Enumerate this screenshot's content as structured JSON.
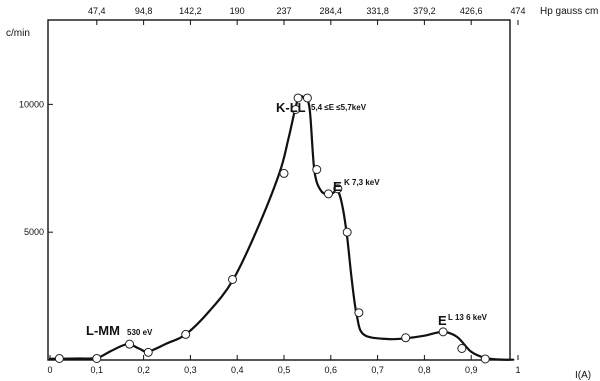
{
  "chart_data": {
    "type": "line",
    "title": "",
    "ylabel": "c/min",
    "xlabel": "I(A)",
    "top_axis_label": "Hp gauss cm",
    "xlim": [
      0,
      1.09
    ],
    "ylim": [
      0,
      13300
    ],
    "x_ticks": [
      {
        "v": 0,
        "label": "0"
      },
      {
        "v": 0.1,
        "label": "0,1"
      },
      {
        "v": 0.2,
        "label": "0,2"
      },
      {
        "v": 0.3,
        "label": "0,3"
      },
      {
        "v": 0.4,
        "label": "0,4"
      },
      {
        "v": 0.5,
        "label": "0,5"
      },
      {
        "v": 0.6,
        "label": "0,6"
      },
      {
        "v": 0.7,
        "label": "0,7"
      },
      {
        "v": 0.8,
        "label": "0,8"
      },
      {
        "v": 0.9,
        "label": "0,9"
      },
      {
        "v": 1.0,
        "label": "1"
      }
    ],
    "top_ticks": [
      {
        "v": 0.1,
        "label": "47,4"
      },
      {
        "v": 0.2,
        "label": "94,8"
      },
      {
        "v": 0.3,
        "label": "142,2"
      },
      {
        "v": 0.4,
        "label": "190"
      },
      {
        "v": 0.5,
        "label": "237"
      },
      {
        "v": 0.6,
        "label": "284,4"
      },
      {
        "v": 0.7,
        "label": "331,8"
      },
      {
        "v": 0.8,
        "label": "379,2"
      },
      {
        "v": 0.9,
        "label": "426,6"
      },
      {
        "v": 1.0,
        "label": "474"
      }
    ],
    "y_ticks": [
      {
        "v": 5000,
        "label": "5000"
      },
      {
        "v": 10000,
        "label": "10000"
      }
    ],
    "curve": {
      "x": [
        0.0,
        0.02,
        0.06,
        0.1,
        0.13,
        0.165,
        0.19,
        0.21,
        0.25,
        0.29,
        0.34,
        0.39,
        0.44,
        0.49,
        0.51,
        0.53,
        0.545,
        0.555,
        0.565,
        0.58,
        0.6,
        0.615,
        0.625,
        0.635,
        0.645,
        0.655,
        0.67,
        0.72,
        0.76,
        0.8,
        0.84,
        0.87,
        0.9,
        0.93,
        0.96,
        0.99
      ],
      "y": [
        50,
        50,
        60,
        80,
        350,
        620,
        450,
        330,
        650,
        1000,
        1900,
        3100,
        5000,
        7300,
        8700,
        10200,
        10200,
        9800,
        7400,
        6600,
        6500,
        6600,
        6000,
        4800,
        3100,
        1800,
        1000,
        820,
        850,
        950,
        1100,
        900,
        320,
        80,
        20,
        10
      ]
    },
    "points": {
      "x": [
        0.02,
        0.1,
        0.17,
        0.21,
        0.29,
        0.39,
        0.5,
        0.525,
        0.53,
        0.55,
        0.57,
        0.595,
        0.615,
        0.635,
        0.66,
        0.76,
        0.84,
        0.88,
        0.93
      ],
      "y": [
        60,
        60,
        620,
        300,
        1000,
        3150,
        7300,
        9800,
        10250,
        10250,
        7450,
        6500,
        6700,
        5000,
        1850,
        870,
        1100,
        450,
        40
      ]
    },
    "annotations": [
      {
        "id": "lmm",
        "label": "L-MM",
        "sub": "530 eV",
        "x": 0.16,
        "y": 650
      },
      {
        "id": "kll",
        "label": "K-LL",
        "sub": "5,4 ≤E ≤5,7keV",
        "x": 0.535,
        "y": 10250
      },
      {
        "id": "ek",
        "label": "E",
        "sub": "K 7,3 keV",
        "x": 0.6,
        "y": 7000
      },
      {
        "id": "el",
        "label": "E",
        "sub": "L 13 6 keV",
        "x": 0.83,
        "y": 1200
      }
    ]
  }
}
